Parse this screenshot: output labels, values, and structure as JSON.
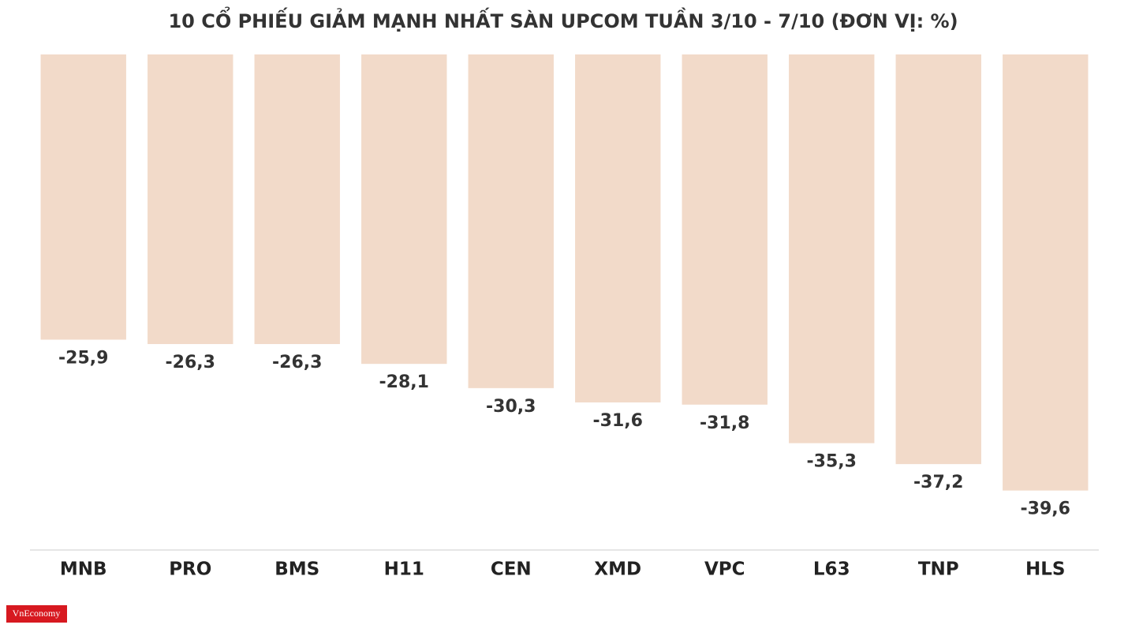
{
  "chart_data": {
    "type": "bar",
    "title": "10 CỔ PHIẾU GIẢM MẠNH NHẤT SÀN UPCOM TUẦN 3/10 - 7/10 (ĐƠN VỊ: %)",
    "categories": [
      "MNB",
      "PRO",
      "BMS",
      "H11",
      "CEN",
      "XMD",
      "VPC",
      "L63",
      "TNP",
      "HLS"
    ],
    "values": [
      -25.9,
      -26.3,
      -26.3,
      -28.1,
      -30.3,
      -31.6,
      -31.8,
      -35.3,
      -37.2,
      -39.6
    ],
    "value_labels": [
      "-25,9",
      "-26,3",
      "-26,3",
      "-28,1",
      "-30,3",
      "-31,6",
      "-31,8",
      "-35,3",
      "-37,2",
      "-39,6"
    ],
    "color": "#f2dac9",
    "ylim": [
      -45,
      0
    ]
  },
  "logo": "VnEconomy"
}
